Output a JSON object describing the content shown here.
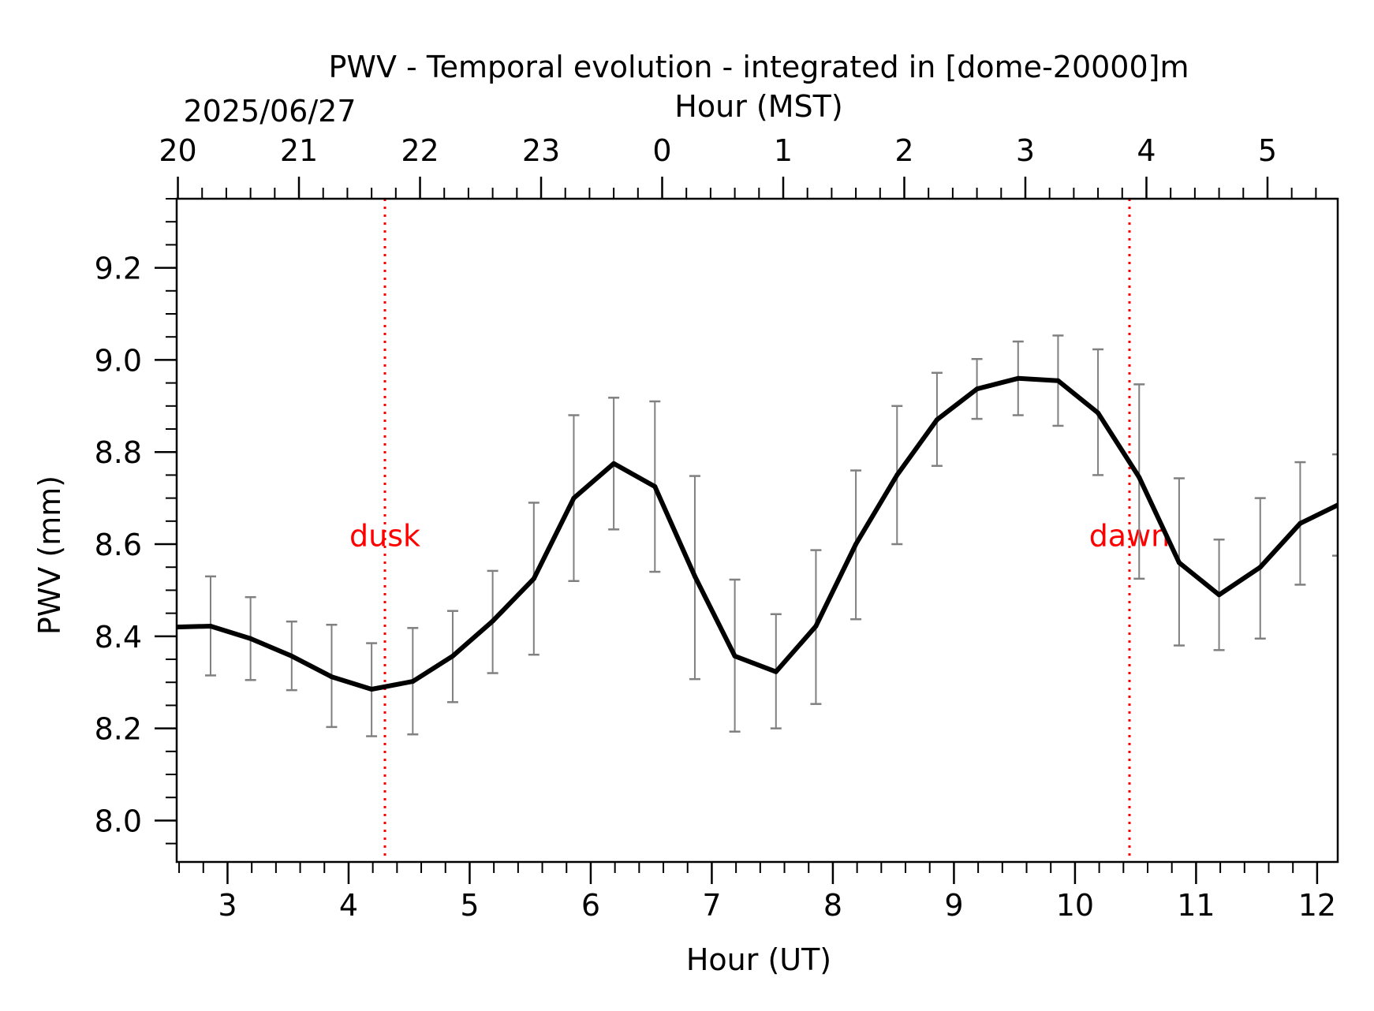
{
  "chart_data": {
    "type": "line",
    "title": "PWV - Temporal evolution - integrated in [dome-20000]m",
    "date_label": "2025/06/27",
    "xlabel": "Hour (UT)",
    "x2label": "Hour (MST)",
    "ylabel": "PWV (mm)",
    "xlim": [
      2.58,
      12.17
    ],
    "ylim": [
      7.91,
      9.35
    ],
    "x_ticks": [
      3,
      4,
      5,
      6,
      7,
      8,
      9,
      10,
      11,
      12
    ],
    "x_tick_labels": [
      "3",
      "4",
      "5",
      "6",
      "7",
      "8",
      "9",
      "10",
      "11",
      "12"
    ],
    "mst_ticks_ut": [
      2.59,
      3.59,
      4.59,
      5.59,
      6.59,
      7.59,
      8.59,
      9.59,
      10.59,
      11.59
    ],
    "mst_tick_labels": [
      "20",
      "21",
      "22",
      "23",
      "0",
      "1",
      "2",
      "3",
      "4",
      "5"
    ],
    "y_ticks": [
      8.0,
      8.2,
      8.4,
      8.6,
      8.8,
      9.0,
      9.2
    ],
    "y_tick_labels": [
      "8.0",
      "8.2",
      "8.4",
      "8.6",
      "8.8",
      "9.0",
      "9.2"
    ],
    "series": [
      {
        "name": "PWV",
        "color": "#000000",
        "x": [
          2.58,
          2.86,
          3.19,
          3.53,
          3.86,
          4.19,
          4.53,
          4.86,
          5.19,
          5.53,
          5.86,
          6.19,
          6.53,
          6.86,
          7.19,
          7.53,
          7.86,
          8.19,
          8.53,
          8.86,
          9.19,
          9.53,
          9.86,
          10.19,
          10.53,
          10.86,
          11.19,
          11.53,
          11.86,
          12.17
        ],
        "y": [
          8.42,
          8.422,
          8.395,
          8.357,
          8.312,
          8.285,
          8.302,
          8.357,
          8.433,
          8.525,
          8.7,
          8.775,
          8.725,
          8.53,
          8.357,
          8.323,
          8.422,
          8.6,
          8.75,
          8.87,
          8.937,
          8.96,
          8.955,
          8.885,
          8.745,
          8.56,
          8.49,
          8.55,
          8.645,
          8.685
        ],
        "err_low": [
          null,
          8.315,
          8.305,
          8.283,
          8.203,
          8.183,
          8.187,
          8.257,
          8.32,
          8.36,
          8.52,
          8.632,
          8.54,
          8.307,
          8.193,
          8.2,
          8.253,
          8.437,
          8.6,
          8.77,
          8.872,
          8.88,
          8.857,
          8.75,
          8.525,
          8.38,
          8.37,
          8.395,
          8.512,
          8.575
        ],
        "err_high": [
          null,
          8.53,
          8.485,
          8.432,
          8.425,
          8.385,
          8.418,
          8.455,
          8.542,
          8.69,
          8.88,
          8.918,
          8.91,
          8.748,
          8.523,
          8.448,
          8.587,
          8.76,
          8.9,
          8.972,
          9.002,
          9.04,
          9.053,
          9.023,
          8.947,
          8.743,
          8.61,
          8.7,
          8.778,
          8.795
        ]
      }
    ],
    "error_bar_color": "#808080",
    "annotations": [
      {
        "label": "dusk",
        "x": 4.3,
        "y": 8.62,
        "color": "#ff0000"
      },
      {
        "label": "dawn",
        "x": 10.45,
        "y": 8.62,
        "color": "#ff0000"
      }
    ],
    "grid": false,
    "legend": "none"
  }
}
